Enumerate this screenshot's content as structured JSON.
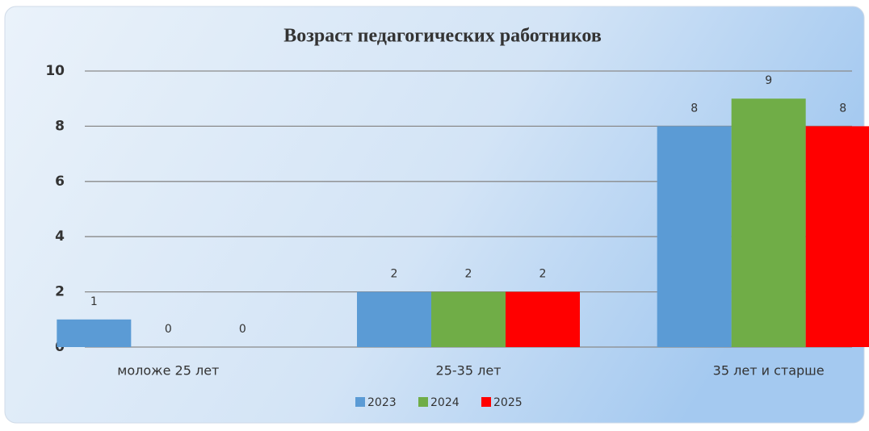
{
  "chart_data": {
    "type": "bar",
    "title": "Возраст педагогических работников",
    "categories": [
      "моложе  25 лет",
      "25-35  лет",
      "35 лет  и старше"
    ],
    "series": [
      {
        "name": "2023",
        "color": "#5b9bd5",
        "values": [
          1,
          2,
          8
        ]
      },
      {
        "name": "2024",
        "color": "#70ad47",
        "values": [
          0,
          2,
          9
        ]
      },
      {
        "name": "2025",
        "color": "#ff0000",
        "values": [
          0,
          2,
          8
        ]
      }
    ],
    "ylim": [
      0,
      10
    ],
    "yticks": [
      0,
      2,
      4,
      6,
      8,
      10
    ],
    "grid": true,
    "legend": "bottom"
  }
}
